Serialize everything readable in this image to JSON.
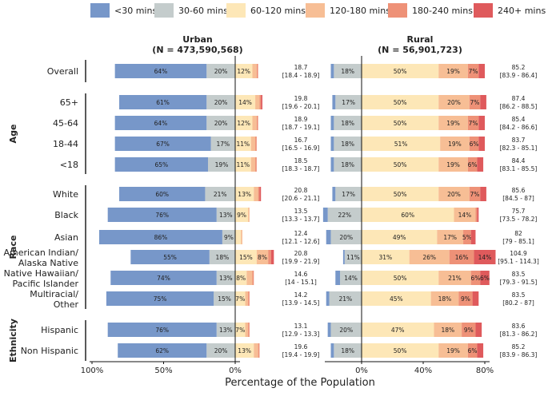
{
  "chart_data": {
    "type": "bar",
    "stacked": true,
    "orientation": "horizontal",
    "legend": {
      "placement": "top",
      "entries": [
        {
          "label": "<30 mins",
          "color": "#7797c9"
        },
        {
          "label": "30-60 mins",
          "color": "#c4cccc"
        },
        {
          "label": "60-120 mins",
          "color": "#fde7b7"
        },
        {
          "label": "120-180 mins",
          "color": "#f7be95"
        },
        {
          "label": "180-240 mins",
          "color": "#ee9177"
        },
        {
          "label": "240+ mins",
          "color": "#df5a5c"
        }
      ]
    },
    "xlabel": "Percentage of the Population",
    "panels": [
      {
        "name": "Urban",
        "subtitle": "(N = 473,590,568)",
        "xticks": [
          "100%",
          "50%",
          "0%"
        ],
        "xlim": [
          -100,
          30
        ]
      },
      {
        "name": "Rural",
        "subtitle": "(N = 56,901,723)",
        "xticks": [
          "0%",
          "40%",
          "80%"
        ],
        "xlim": [
          -20,
          80
        ]
      }
    ],
    "groups": [
      {
        "name": "",
        "rows": [
          0
        ]
      },
      {
        "name": "Age",
        "rows": [
          1,
          2,
          3,
          4
        ]
      },
      {
        "name": "Race",
        "rows": [
          5,
          6,
          7,
          8,
          9,
          10
        ]
      },
      {
        "name": "Ethnicity",
        "rows": [
          11,
          12
        ]
      }
    ],
    "rows": [
      {
        "label": [
          "Overall"
        ],
        "urban": {
          "values": [
            64,
            20,
            12,
            3,
            1,
            0
          ],
          "labels": [
            "64%",
            "20%",
            "12%",
            "",
            "",
            ""
          ],
          "mean": "18.7",
          "ci": "[18.4 - 18.9]"
        },
        "rural": {
          "values": [
            2,
            18,
            50,
            19,
            7,
            4
          ],
          "labels": [
            "",
            "18%",
            "50%",
            "19%",
            "7%",
            ""
          ],
          "mean": "85.2",
          "ci": "[83.9 - 86.4]"
        }
      },
      {
        "label": [
          "65+"
        ],
        "urban": {
          "values": [
            61,
            20,
            14,
            3,
            1,
            1
          ],
          "labels": [
            "61%",
            "20%",
            "14%",
            "",
            "",
            ""
          ],
          "mean": "19.8",
          "ci": "[19.6 - 20.1]"
        },
        "rural": {
          "values": [
            2,
            17,
            50,
            20,
            7,
            4
          ],
          "labels": [
            "",
            "17%",
            "50%",
            "20%",
            "7%",
            ""
          ],
          "mean": "87.4",
          "ci": "[86.2 - 88.5]"
        }
      },
      {
        "label": [
          "45-64"
        ],
        "urban": {
          "values": [
            64,
            20,
            12,
            3,
            1,
            0
          ],
          "labels": [
            "64%",
            "20%",
            "12%",
            "",
            "",
            ""
          ],
          "mean": "18.9",
          "ci": "[18.7 - 19.1]"
        },
        "rural": {
          "values": [
            2,
            18,
            50,
            19,
            7,
            4
          ],
          "labels": [
            "",
            "18%",
            "50%",
            "19%",
            "7%",
            ""
          ],
          "mean": "85.4",
          "ci": "[84.2 - 86.6]"
        }
      },
      {
        "label": [
          "18-44"
        ],
        "urban": {
          "values": [
            67,
            17,
            11,
            3,
            1,
            0
          ],
          "labels": [
            "67%",
            "17%",
            "11%",
            "",
            "",
            ""
          ],
          "mean": "16.7",
          "ci": "[16.5 - 16.9]"
        },
        "rural": {
          "values": [
            2,
            18,
            51,
            19,
            6,
            4
          ],
          "labels": [
            "",
            "18%",
            "51%",
            "19%",
            "6%",
            ""
          ],
          "mean": "83.7",
          "ci": "[82.3 - 85.1]"
        }
      },
      {
        "label": [
          "<18"
        ],
        "urban": {
          "values": [
            65,
            19,
            11,
            3,
            1,
            0
          ],
          "labels": [
            "65%",
            "19%",
            "11%",
            "",
            "",
            ""
          ],
          "mean": "18.5",
          "ci": "[18.3 - 18.7]"
        },
        "rural": {
          "values": [
            2,
            18,
            50,
            19,
            6,
            4
          ],
          "labels": [
            "",
            "18%",
            "50%",
            "19%",
            "6%",
            ""
          ],
          "mean": "84.4",
          "ci": "[83.1 - 85.5]"
        }
      },
      {
        "label": [
          "White"
        ],
        "urban": {
          "values": [
            60,
            21,
            13,
            3,
            1,
            1
          ],
          "labels": [
            "60%",
            "21%",
            "13%",
            "",
            "",
            ""
          ],
          "mean": "20.8",
          "ci": "[20.6 - 21.1]"
        },
        "rural": {
          "values": [
            2,
            17,
            50,
            20,
            7,
            4
          ],
          "labels": [
            "",
            "17%",
            "50%",
            "20%",
            "7%",
            ""
          ],
          "mean": "85.6",
          "ci": "[84.5 - 87]"
        }
      },
      {
        "label": [
          "Black"
        ],
        "urban": {
          "values": [
            76,
            13,
            9,
            1,
            0,
            0
          ],
          "labels": [
            "76%",
            "13%",
            "9%",
            "",
            "",
            ""
          ],
          "mean": "13.5",
          "ci": "[13.3 - 13.7]"
        },
        "rural": {
          "values": [
            3,
            22,
            60,
            14,
            1,
            1
          ],
          "labels": [
            "",
            "22%",
            "60%",
            "14%",
            "",
            ""
          ],
          "mean": "75.7",
          "ci": "[73.5 - 78.2]"
        }
      },
      {
        "label": [
          "Asian"
        ],
        "urban": {
          "values": [
            86,
            9,
            4,
            1,
            0,
            0
          ],
          "labels": [
            "86%",
            "9%",
            "",
            "",
            "",
            ""
          ],
          "mean": "12.4",
          "ci": "[12.1 - 12.6]"
        },
        "rural": {
          "values": [
            3,
            20,
            49,
            17,
            5,
            3
          ],
          "labels": [
            "",
            "20%",
            "49%",
            "17%",
            "5%",
            ""
          ],
          "mean": "82",
          "ci": "[79 - 85.1]"
        }
      },
      {
        "label": [
          "American Indian/",
          "Alaska Native"
        ],
        "urban": {
          "values": [
            55,
            18,
            15,
            8,
            2,
            2
          ],
          "labels": [
            "55%",
            "18%",
            "15%",
            "8%",
            "",
            ""
          ],
          "mean": "20.8",
          "ci": "[19.9 - 21.9]"
        },
        "rural": {
          "values": [
            1,
            11,
            31,
            26,
            16,
            14
          ],
          "labels": [
            "",
            "11%",
            "31%",
            "26%",
            "16%",
            "14%"
          ],
          "mean": "104.9",
          "ci": "[95.1 - 114.3]"
        }
      },
      {
        "label": [
          "Native Hawaiian/",
          "Pacific Islander"
        ],
        "urban": {
          "values": [
            74,
            13,
            8,
            4,
            1,
            0
          ],
          "labels": [
            "74%",
            "13%",
            "8%",
            "",
            "",
            ""
          ],
          "mean": "14.6",
          "ci": "[14 - 15.1]"
        },
        "rural": {
          "values": [
            3,
            14,
            50,
            21,
            6,
            6
          ],
          "labels": [
            "",
            "14%",
            "50%",
            "21%",
            "6%",
            "6%"
          ],
          "mean": "83.5",
          "ci": "[79.3 - 91.5]"
        }
      },
      {
        "label": [
          "Multiracial/",
          "Other"
        ],
        "urban": {
          "values": [
            75,
            15,
            7,
            2,
            1,
            0
          ],
          "labels": [
            "75%",
            "15%",
            "7%",
            "",
            "",
            ""
          ],
          "mean": "14.2",
          "ci": "[13.9 - 14.5]"
        },
        "rural": {
          "values": [
            2,
            21,
            45,
            18,
            9,
            4
          ],
          "labels": [
            "",
            "21%",
            "45%",
            "18%",
            "9%",
            ""
          ],
          "mean": "83.5",
          "ci": "[80.2 - 87]"
        }
      },
      {
        "label": [
          "Hispanic"
        ],
        "urban": {
          "values": [
            76,
            13,
            7,
            2,
            1,
            0
          ],
          "labels": [
            "76%",
            "13%",
            "7%",
            "",
            "",
            ""
          ],
          "mean": "13.1",
          "ci": "[12.9 - 13.3]"
        },
        "rural": {
          "values": [
            2,
            20,
            47,
            18,
            9,
            4
          ],
          "labels": [
            "",
            "20%",
            "47%",
            "18%",
            "9%",
            ""
          ],
          "mean": "83.6",
          "ci": "[81.3 - 86.2]"
        }
      },
      {
        "label": [
          "Non Hispanic"
        ],
        "urban": {
          "values": [
            62,
            20,
            13,
            3,
            1,
            0
          ],
          "labels": [
            "62%",
            "20%",
            "13%",
            "",
            "",
            ""
          ],
          "mean": "19.6",
          "ci": "[19.4 - 19.9]"
        },
        "rural": {
          "values": [
            2,
            18,
            50,
            19,
            6,
            4
          ],
          "labels": [
            "",
            "18%",
            "50%",
            "19%",
            "6%",
            ""
          ],
          "mean": "85.2",
          "ci": "[83.9 - 86.3]"
        }
      }
    ]
  }
}
